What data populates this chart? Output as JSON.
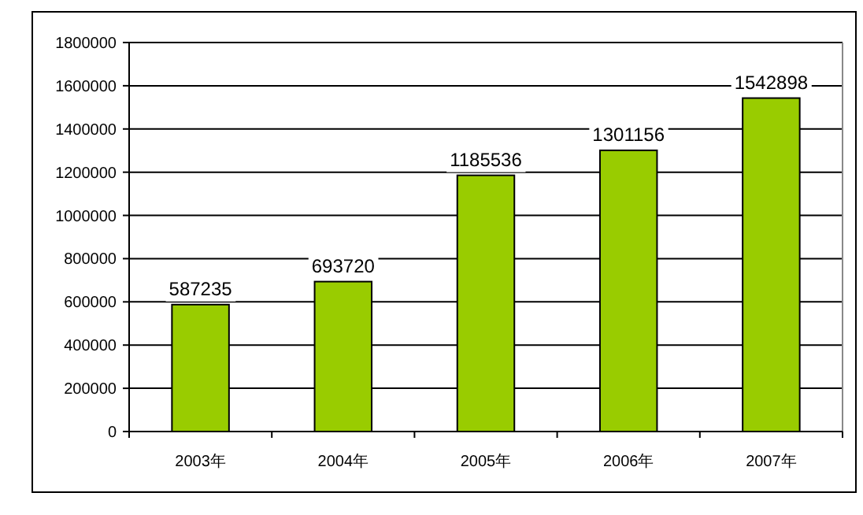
{
  "chart_data": {
    "type": "bar",
    "categories": [
      "2003年",
      "2004年",
      "2005年",
      "2006年",
      "2007年"
    ],
    "values": [
      587235,
      693720,
      1185536,
      1301156,
      1542898
    ],
    "color": "#99cc00",
    "ylim": [
      0,
      1800000
    ],
    "yticks": [
      0,
      200000,
      400000,
      600000,
      800000,
      1000000,
      1200000,
      1400000,
      1600000,
      1800000
    ],
    "grid": "y",
    "data_labels": true
  }
}
